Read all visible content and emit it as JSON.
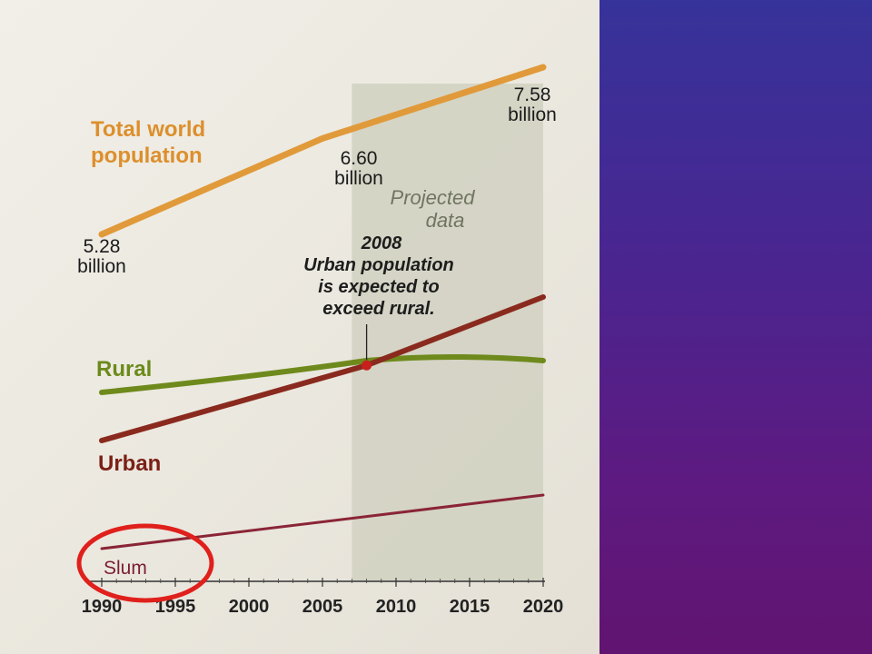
{
  "chart_data": {
    "type": "line",
    "x_ticks": [
      1990,
      1995,
      2000,
      2005,
      2010,
      2015,
      2020
    ],
    "x_range": [
      1990,
      2020
    ],
    "projection_start": 2007,
    "series": [
      {
        "name": "Total world population",
        "color": "#e19a3a",
        "x": [
          1990,
          2005,
          2020
        ],
        "y": [
          5.28,
          6.6,
          7.58
        ],
        "data_labels": [
          {
            "x": 1990,
            "value": "5.28",
            "unit": "billion"
          },
          {
            "x": 2005,
            "value": "6.60",
            "unit": "billion"
          },
          {
            "x": 2020,
            "value": "7.58",
            "unit": "billion"
          }
        ]
      },
      {
        "name": "Rural",
        "color": "#6f8a1c",
        "x": [
          1990,
          2008,
          2020
        ],
        "y": [
          3.0,
          3.35,
          3.35
        ]
      },
      {
        "name": "Urban",
        "color": "#8a2a1e",
        "x": [
          1990,
          2008,
          2020
        ],
        "y": [
          2.25,
          3.35,
          4.35
        ]
      },
      {
        "name": "Slum",
        "color": "#8a2536",
        "x": [
          1990,
          2020
        ],
        "y": [
          0.7,
          1.5
        ]
      }
    ],
    "projected_label": [
      "Projected",
      "data"
    ],
    "annotation": {
      "year": "2008",
      "lines": [
        "Urban population",
        "is expected to",
        "exceed rural."
      ],
      "x": 2008,
      "y": 3.35
    },
    "highlight": {
      "target": "Slum",
      "color": "#e0201c"
    }
  }
}
